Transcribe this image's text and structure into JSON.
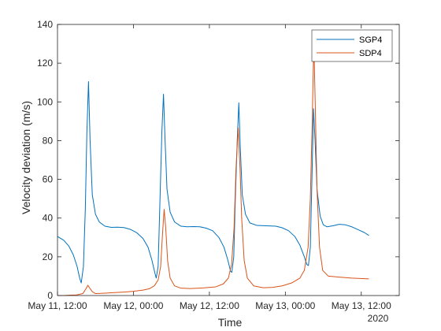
{
  "chart_data": {
    "type": "line",
    "title": "",
    "xlabel": "Time",
    "ylabel": "Velocity deviation (m/s)",
    "x_secondary_label": "2020",
    "x_unit": "hours since 2020-05-11 12:00",
    "xlim": [
      0,
      54
    ],
    "ylim": [
      0,
      140
    ],
    "xticks": [
      {
        "value": 0,
        "label": "May 11, 12:00"
      },
      {
        "value": 12,
        "label": "May 12, 00:00"
      },
      {
        "value": 24,
        "label": "May 12, 12:00"
      },
      {
        "value": 36,
        "label": "May 13, 00:00"
      },
      {
        "value": 48,
        "label": "May 13, 12:00"
      }
    ],
    "yticks": [
      0,
      20,
      40,
      60,
      80,
      100,
      120,
      140
    ],
    "grid": false,
    "legend_position": "top-right",
    "series": [
      {
        "name": "SGP4",
        "color": "#0072BD",
        "points": [
          [
            0.0,
            30.5
          ],
          [
            1.0,
            28.5
          ],
          [
            1.8,
            25.5
          ],
          [
            2.5,
            21.0
          ],
          [
            3.1,
            15.0
          ],
          [
            3.5,
            9.0
          ],
          [
            3.75,
            6.5
          ],
          [
            4.1,
            15.0
          ],
          [
            4.4,
            45.0
          ],
          [
            4.65,
            85.0
          ],
          [
            4.9,
            110.5
          ],
          [
            5.15,
            80.0
          ],
          [
            5.5,
            52.0
          ],
          [
            6.0,
            42.0
          ],
          [
            6.6,
            38.0
          ],
          [
            7.5,
            35.8
          ],
          [
            8.5,
            35.2
          ],
          [
            9.5,
            35.3
          ],
          [
            10.5,
            35.1
          ],
          [
            11.5,
            34.2
          ],
          [
            12.5,
            32.5
          ],
          [
            13.5,
            29.5
          ],
          [
            14.3,
            25.0
          ],
          [
            14.9,
            18.5
          ],
          [
            15.4,
            11.5
          ],
          [
            15.6,
            9.0
          ],
          [
            15.9,
            15.0
          ],
          [
            16.2,
            50.0
          ],
          [
            16.5,
            85.0
          ],
          [
            16.75,
            104.0
          ],
          [
            17.0,
            80.0
          ],
          [
            17.3,
            55.0
          ],
          [
            17.8,
            43.0
          ],
          [
            18.5,
            38.0
          ],
          [
            19.5,
            35.8
          ],
          [
            20.5,
            35.5
          ],
          [
            21.5,
            35.6
          ],
          [
            22.5,
            35.5
          ],
          [
            23.5,
            34.8
          ],
          [
            24.5,
            33.5
          ],
          [
            25.5,
            30.0
          ],
          [
            26.3,
            25.0
          ],
          [
            26.9,
            18.5
          ],
          [
            27.35,
            12.5
          ],
          [
            27.55,
            12.0
          ],
          [
            27.85,
            20.0
          ],
          [
            28.1,
            50.0
          ],
          [
            28.4,
            80.0
          ],
          [
            28.65,
            99.5
          ],
          [
            28.9,
            75.0
          ],
          [
            29.2,
            52.0
          ],
          [
            29.7,
            42.0
          ],
          [
            30.4,
            37.5
          ],
          [
            31.5,
            36.2
          ],
          [
            33.0,
            36.0
          ],
          [
            34.5,
            35.8
          ],
          [
            35.5,
            35.0
          ],
          [
            36.5,
            33.5
          ],
          [
            37.5,
            30.5
          ],
          [
            38.3,
            26.0
          ],
          [
            39.0,
            20.0
          ],
          [
            39.4,
            16.0
          ],
          [
            39.65,
            15.5
          ],
          [
            39.95,
            25.0
          ],
          [
            40.2,
            60.0
          ],
          [
            40.45,
            96.5
          ],
          [
            40.7,
            80.0
          ],
          [
            41.0,
            55.0
          ],
          [
            41.5,
            41.0
          ],
          [
            42.0,
            36.5
          ],
          [
            42.6,
            35.5
          ],
          [
            43.5,
            36.0
          ],
          [
            44.5,
            36.8
          ],
          [
            45.5,
            36.5
          ],
          [
            46.5,
            35.5
          ],
          [
            47.5,
            34.0
          ],
          [
            48.5,
            32.5
          ],
          [
            49.2,
            31.0
          ]
        ]
      },
      {
        "name": "SDP4",
        "color": "#D95319",
        "points": [
          [
            0.0,
            0.0
          ],
          [
            1.0,
            0.0
          ],
          [
            2.0,
            0.2
          ],
          [
            3.0,
            0.3
          ],
          [
            4.0,
            1.0
          ],
          [
            4.5,
            3.5
          ],
          [
            4.8,
            5.3
          ],
          [
            5.1,
            3.8
          ],
          [
            5.5,
            2.0
          ],
          [
            6.0,
            1.0
          ],
          [
            7.5,
            1.2
          ],
          [
            9.0,
            1.5
          ],
          [
            10.5,
            1.8
          ],
          [
            12.0,
            2.2
          ],
          [
            13.5,
            2.8
          ],
          [
            14.5,
            3.5
          ],
          [
            15.3,
            5.0
          ],
          [
            15.9,
            8.0
          ],
          [
            16.3,
            15.0
          ],
          [
            16.6,
            32.0
          ],
          [
            16.85,
            44.5
          ],
          [
            17.1,
            35.0
          ],
          [
            17.4,
            18.0
          ],
          [
            17.8,
            9.0
          ],
          [
            18.5,
            5.0
          ],
          [
            19.5,
            3.8
          ],
          [
            21.0,
            3.6
          ],
          [
            23.0,
            3.9
          ],
          [
            25.0,
            4.5
          ],
          [
            26.2,
            6.0
          ],
          [
            27.0,
            9.0
          ],
          [
            27.5,
            16.0
          ],
          [
            27.9,
            35.0
          ],
          [
            28.2,
            65.0
          ],
          [
            28.55,
            86.5
          ],
          [
            28.85,
            65.0
          ],
          [
            29.1,
            40.0
          ],
          [
            29.5,
            18.0
          ],
          [
            30.0,
            9.0
          ],
          [
            31.0,
            5.0
          ],
          [
            32.5,
            4.0
          ],
          [
            34.0,
            4.2
          ],
          [
            35.5,
            5.0
          ],
          [
            37.0,
            6.5
          ],
          [
            38.3,
            9.0
          ],
          [
            39.0,
            13.0
          ],
          [
            39.6,
            25.0
          ],
          [
            39.95,
            50.0
          ],
          [
            40.25,
            90.0
          ],
          [
            40.5,
            131.0
          ],
          [
            40.75,
            95.0
          ],
          [
            41.0,
            55.0
          ],
          [
            41.4,
            25.0
          ],
          [
            41.9,
            13.0
          ],
          [
            42.8,
            10.0
          ],
          [
            44.5,
            9.5
          ],
          [
            46.5,
            9.0
          ],
          [
            48.5,
            8.7
          ],
          [
            49.2,
            8.6
          ]
        ]
      }
    ]
  }
}
